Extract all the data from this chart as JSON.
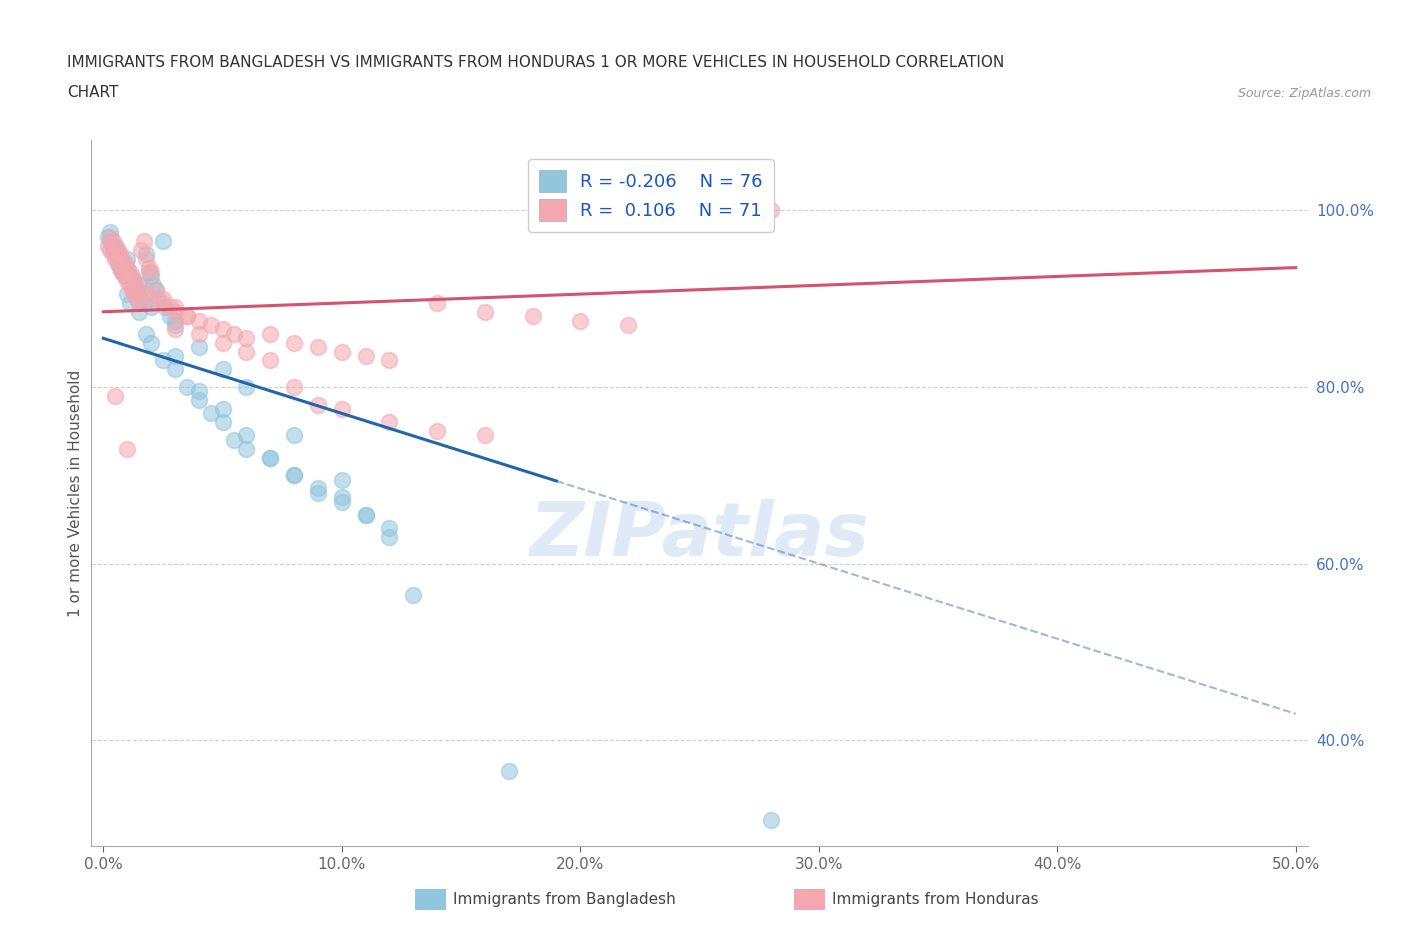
{
  "title_line1": "IMMIGRANTS FROM BANGLADESH VS IMMIGRANTS FROM HONDURAS 1 OR MORE VEHICLES IN HOUSEHOLD CORRELATION",
  "title_line2": "CHART",
  "source": "Source: ZipAtlas.com",
  "ylabel": "1 or more Vehicles in Household",
  "xlim_min": 0.0,
  "xlim_max": 50.0,
  "ylim_min": 28.0,
  "ylim_max": 108.0,
  "xticks": [
    0.0,
    10.0,
    20.0,
    30.0,
    40.0,
    50.0
  ],
  "yticks_right": [
    40.0,
    60.0,
    80.0,
    100.0
  ],
  "bangladesh_color": "#92c5de",
  "honduras_color": "#f4a7b0",
  "bangladesh_trend_color": "#2166ac",
  "honduras_trend_color": "#d6536d",
  "R_bangladesh": -0.206,
  "N_bangladesh": 76,
  "R_honduras": 0.106,
  "N_honduras": 71,
  "watermark": "ZIPatlas",
  "bangladesh_trend_x0": 0.0,
  "bangladesh_trend_y0": 85.5,
  "bangladesh_trend_x1": 50.0,
  "bangladesh_trend_y1": 43.0,
  "honduras_trend_x0": 0.0,
  "honduras_trend_y0": 88.5,
  "honduras_trend_x1": 50.0,
  "honduras_trend_y1": 93.5,
  "bangladesh_solid_x_end": 19.0,
  "bangladesh_x": [
    0.2,
    0.3,
    0.4,
    0.5,
    0.6,
    0.7,
    0.8,
    0.9,
    1.0,
    1.1,
    1.2,
    1.3,
    1.4,
    1.5,
    1.6,
    1.7,
    1.8,
    1.9,
    2.0,
    2.1,
    2.2,
    2.3,
    2.5,
    2.6,
    2.8,
    3.0,
    0.3,
    0.4,
    0.5,
    0.6,
    0.7,
    0.8,
    0.9,
    1.0,
    1.1,
    1.3,
    1.5,
    1.8,
    2.0,
    2.5,
    3.0,
    3.5,
    4.0,
    4.5,
    5.0,
    5.5,
    6.0,
    7.0,
    8.0,
    9.0,
    10.0,
    11.0,
    12.0,
    3.0,
    4.0,
    5.0,
    6.0,
    7.0,
    8.0,
    9.0,
    10.0,
    11.0,
    12.0,
    0.5,
    1.0,
    1.5,
    2.0,
    3.0,
    4.0,
    5.0,
    6.0,
    8.0,
    10.0,
    13.0,
    17.0,
    28.0
  ],
  "bangladesh_y": [
    97.0,
    96.5,
    96.0,
    95.5,
    95.0,
    94.5,
    94.0,
    93.5,
    93.0,
    92.5,
    92.0,
    91.5,
    91.0,
    90.5,
    90.0,
    89.5,
    95.0,
    93.0,
    92.5,
    91.5,
    91.0,
    90.0,
    96.5,
    89.0,
    88.0,
    87.0,
    97.5,
    96.0,
    95.0,
    94.0,
    93.5,
    93.0,
    92.5,
    90.5,
    89.5,
    91.0,
    88.5,
    86.0,
    85.0,
    83.0,
    82.0,
    80.0,
    78.5,
    77.0,
    76.0,
    74.0,
    73.0,
    72.0,
    70.0,
    68.5,
    67.0,
    65.5,
    64.0,
    83.5,
    79.5,
    77.5,
    74.5,
    72.0,
    70.0,
    68.0,
    67.5,
    65.5,
    63.0,
    96.0,
    94.5,
    91.5,
    89.0,
    87.5,
    84.5,
    82.0,
    80.0,
    74.5,
    69.5,
    56.5,
    36.5,
    31.0
  ],
  "honduras_x": [
    0.2,
    0.3,
    0.4,
    0.5,
    0.6,
    0.7,
    0.8,
    0.9,
    1.0,
    1.1,
    1.2,
    1.3,
    1.4,
    1.5,
    1.6,
    1.7,
    1.8,
    1.9,
    2.0,
    2.2,
    2.5,
    2.8,
    3.0,
    3.5,
    0.3,
    0.4,
    0.5,
    0.6,
    0.7,
    0.8,
    0.9,
    1.0,
    1.1,
    1.2,
    1.3,
    1.5,
    1.8,
    2.0,
    2.5,
    3.0,
    3.5,
    4.0,
    4.5,
    5.0,
    5.5,
    6.0,
    7.0,
    8.0,
    9.0,
    10.0,
    11.0,
    12.0,
    14.0,
    16.0,
    18.0,
    20.0,
    22.0,
    3.0,
    4.0,
    5.0,
    6.0,
    7.0,
    8.0,
    9.0,
    10.0,
    12.0,
    14.0,
    16.0,
    0.5,
    1.0,
    28.0
  ],
  "honduras_y": [
    96.0,
    95.5,
    95.0,
    94.5,
    94.0,
    93.5,
    93.0,
    92.5,
    92.0,
    91.5,
    91.0,
    90.5,
    90.0,
    89.5,
    95.5,
    96.5,
    94.5,
    93.5,
    93.0,
    91.0,
    90.0,
    89.0,
    88.5,
    88.0,
    97.0,
    96.5,
    96.0,
    95.5,
    95.0,
    94.5,
    94.0,
    93.5,
    93.0,
    92.5,
    92.0,
    91.5,
    90.5,
    90.0,
    89.5,
    89.0,
    88.0,
    87.5,
    87.0,
    86.5,
    86.0,
    85.5,
    86.0,
    85.0,
    84.5,
    84.0,
    83.5,
    83.0,
    89.5,
    88.5,
    88.0,
    87.5,
    87.0,
    86.5,
    86.0,
    85.0,
    84.0,
    83.0,
    80.0,
    78.0,
    77.5,
    76.0,
    75.0,
    74.5,
    79.0,
    73.0,
    100.0
  ]
}
